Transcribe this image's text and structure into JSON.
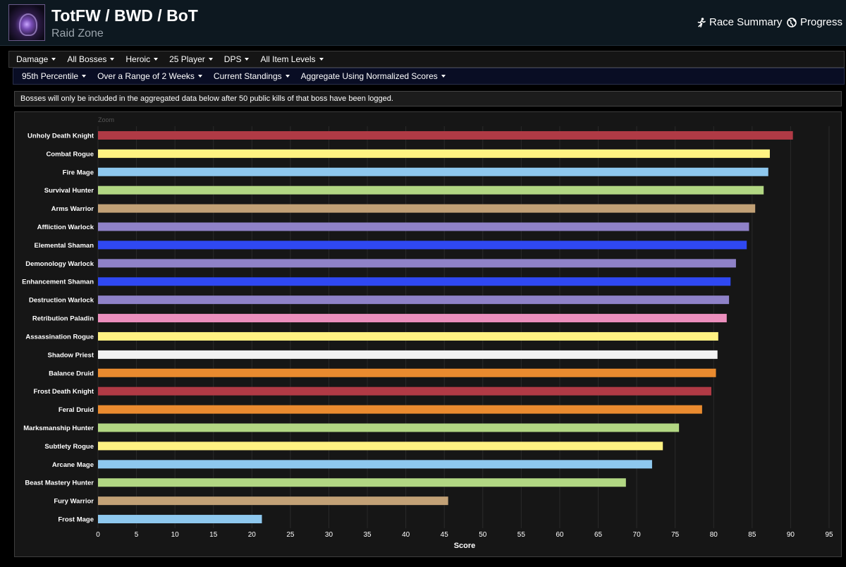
{
  "header": {
    "title": "TotFW / BWD / BoT",
    "subtitle": "Raid Zone",
    "race_summary": "Race Summary",
    "progress": "Progress"
  },
  "filters_row1": [
    "Damage",
    "All Bosses",
    "Heroic",
    "25 Player",
    "DPS",
    "All Item Levels"
  ],
  "filters_row2": [
    "95th Percentile",
    "Over a Range of 2 Weeks",
    "Current Standings",
    "Aggregate Using Normalized Scores"
  ],
  "notice": "Bosses will only be included in the aggregated data below after 50 public kills of that boss have been logged.",
  "chart_data": {
    "type": "bar",
    "orientation": "horizontal",
    "zoom_label": "Zoom",
    "xlabel": "Score",
    "xlim": [
      0,
      95
    ],
    "xticks": [
      0,
      5,
      10,
      15,
      20,
      25,
      30,
      35,
      40,
      45,
      50,
      55,
      60,
      65,
      70,
      75,
      80,
      85,
      90,
      95
    ],
    "grid": true,
    "categories": [
      "Unholy Death Knight",
      "Combat Rogue",
      "Fire Mage",
      "Survival Hunter",
      "Arms Warrior",
      "Affliction Warlock",
      "Elemental Shaman",
      "Demonology Warlock",
      "Enhancement Shaman",
      "Destruction Warlock",
      "Retribution Paladin",
      "Assassination Rogue",
      "Shadow Priest",
      "Balance Druid",
      "Frost Death Knight",
      "Feral Druid",
      "Marksmanship Hunter",
      "Subtlety Rogue",
      "Arcane Mage",
      "Beast Mastery Hunter",
      "Fury Warrior",
      "Frost Mage"
    ],
    "values": [
      90.3,
      87.3,
      87.1,
      86.5,
      85.4,
      84.6,
      84.3,
      82.9,
      82.2,
      82.0,
      81.7,
      80.6,
      80.5,
      80.3,
      79.7,
      78.5,
      75.5,
      73.4,
      72.0,
      68.6,
      45.5,
      21.3
    ],
    "colors": [
      "#b03a45",
      "#fff282",
      "#8ec8ee",
      "#b2d783",
      "#c2a176",
      "#8f82c8",
      "#2f48f2",
      "#8f82c8",
      "#2f48f2",
      "#8f82c8",
      "#ec8fbd",
      "#fff282",
      "#f2f2f2",
      "#ea8b2f",
      "#b03a45",
      "#ea8b2f",
      "#b2d783",
      "#fff282",
      "#8ec8ee",
      "#b2d783",
      "#c2a176",
      "#8ec8ee"
    ]
  }
}
